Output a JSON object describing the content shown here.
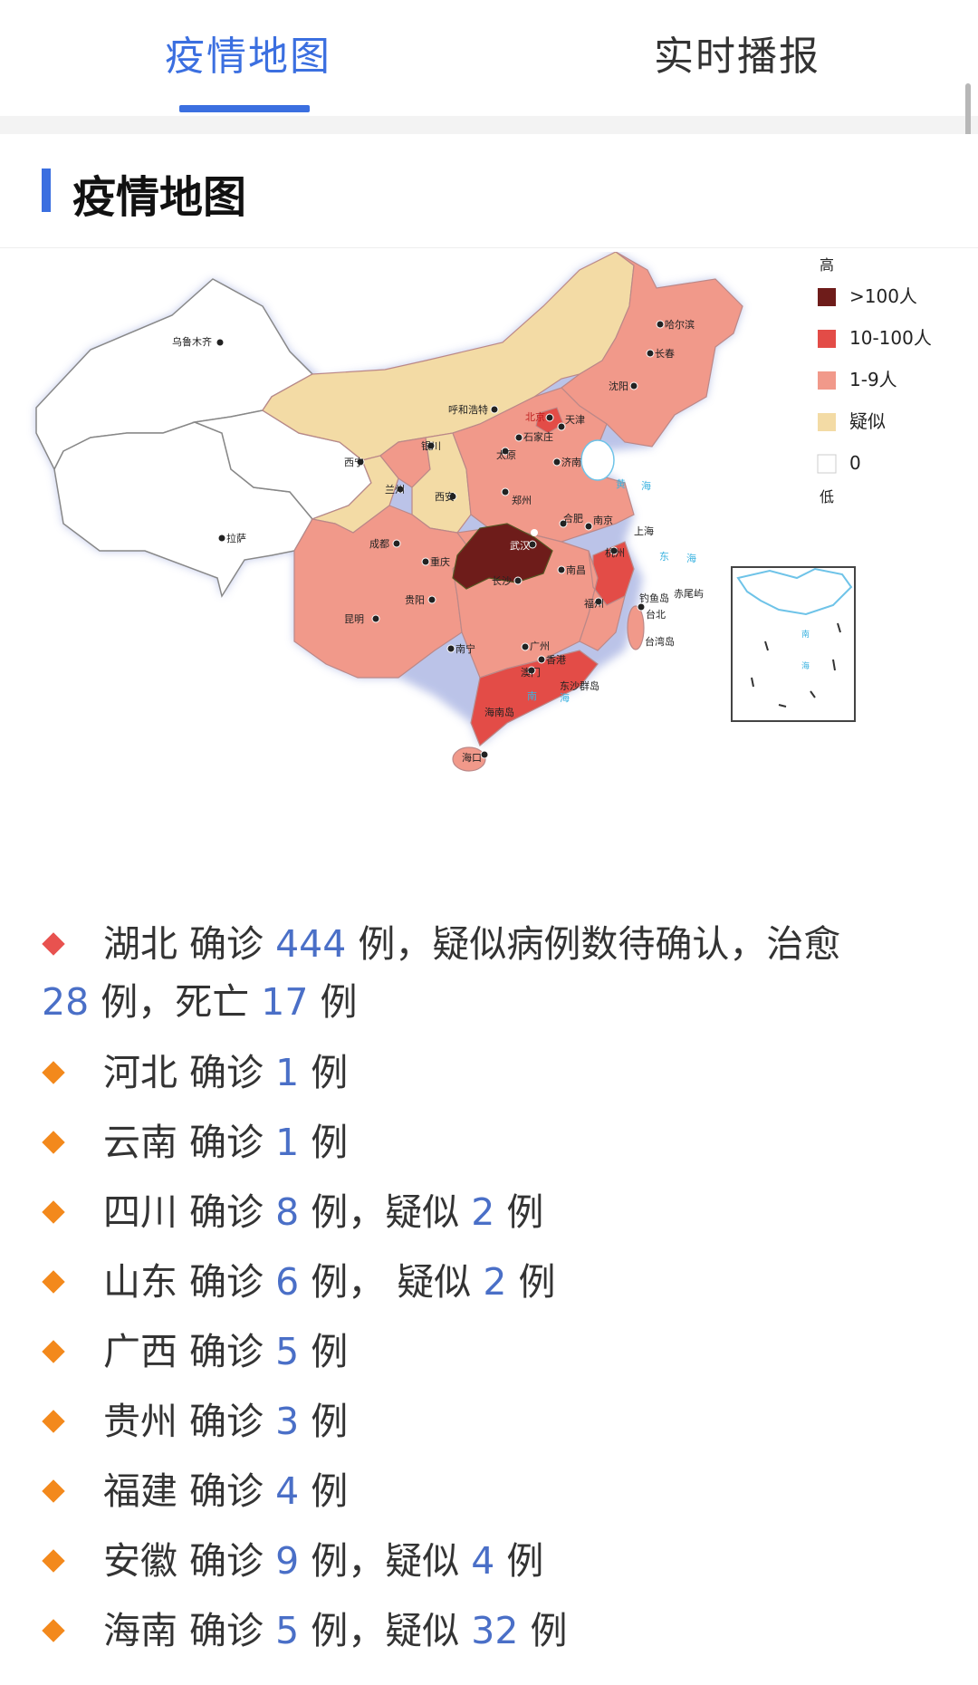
{
  "tabs": {
    "active": "疫情地图",
    "other": "实时播报"
  },
  "section": {
    "title": "疫情地图"
  },
  "legend": {
    "high": "高",
    "low": "低",
    "items": [
      {
        "label": ">100人",
        "color": "#6e1c1a"
      },
      {
        "label": "10-100人",
        "color": "#e34c47"
      },
      {
        "label": "1-9人",
        "color": "#f1998a"
      },
      {
        "label": "疑似",
        "color": "#f3dba5"
      },
      {
        "label": "0",
        "color": "#ffffff"
      }
    ]
  },
  "map_labels": {
    "urumqi": "乌鲁木齐",
    "lhasa": "拉萨",
    "xining": "西宁",
    "lanzhou": "兰州",
    "yinchuan": "银川",
    "hohhot": "呼和浩特",
    "harbin": "哈尔滨",
    "changchun": "长春",
    "shenyang": "沈阳",
    "beijing": "北京",
    "tianjin": "天津",
    "shijiazhuang": "石家庄",
    "taiyuan": "太原",
    "jinan": "济南",
    "zhengzhou": "郑州",
    "xian": "西安",
    "chengdu": "成都",
    "chongqing": "重庆",
    "wuhan": "武汉",
    "hefei": "合肥",
    "nanjing": "南京",
    "shanghai": "上海",
    "hangzhou": "杭州",
    "changsha": "长沙",
    "nanchang": "南昌",
    "fuzhou": "福州",
    "guiyang": "贵阳",
    "kunming": "昆明",
    "nanning": "南宁",
    "guangzhou": "广州",
    "hongkong": "香港",
    "macau": "澳门",
    "haikou": "海口",
    "taipei": "台北",
    "taiwan": "台湾岛",
    "diaoyu": "钓鱼岛",
    "chiwei": "赤尾屿",
    "dongsha": "东沙群岛",
    "hainan": "海南岛",
    "sea_huang1": "黄",
    "sea_huang2": "海",
    "sea_dong1": "东",
    "sea_dong2": "海",
    "sea_nan1": "南",
    "sea_nan2": "海"
  },
  "items": [
    {
      "marker": "red",
      "province": "湖北",
      "confirm_label": "确诊",
      "confirmed": "444",
      "unit": "例，",
      "suspect_text": "疑似病例数待确认，治愈",
      "cured": "28",
      "unit2": "例，死亡",
      "deaths": "17",
      "unit3": "例"
    },
    {
      "marker": "orange",
      "province": "河北",
      "confirm_label": "确诊",
      "confirmed": "1",
      "unit": "例"
    },
    {
      "marker": "orange",
      "province": "云南",
      "confirm_label": "确诊",
      "confirmed": "1",
      "unit": "例"
    },
    {
      "marker": "orange",
      "province": "四川",
      "confirm_label": "确诊",
      "confirmed": "8",
      "unit": "例，疑似",
      "suspected": "2",
      "unit2": "例"
    },
    {
      "marker": "orange",
      "province": "山东",
      "confirm_label": "确诊",
      "confirmed": "6",
      "unit": "例， 疑似",
      "suspected": "2",
      "unit2": "例"
    },
    {
      "marker": "orange",
      "province": "广西",
      "confirm_label": "确诊",
      "confirmed": "5",
      "unit": "例"
    },
    {
      "marker": "orange",
      "province": "贵州",
      "confirm_label": "确诊",
      "confirmed": "3",
      "unit": "例"
    },
    {
      "marker": "orange",
      "province": "福建",
      "confirm_label": "确诊",
      "confirmed": "4",
      "unit": "例"
    },
    {
      "marker": "orange",
      "province": "安徽",
      "confirm_label": "确诊",
      "confirmed": "9",
      "unit": "例，疑似",
      "suspected": "4",
      "unit2": "例"
    },
    {
      "marker": "orange",
      "province": "海南",
      "confirm_label": "确诊",
      "confirmed": "5",
      "unit": "例，疑似",
      "suspected": "32",
      "unit2": "例"
    }
  ]
}
